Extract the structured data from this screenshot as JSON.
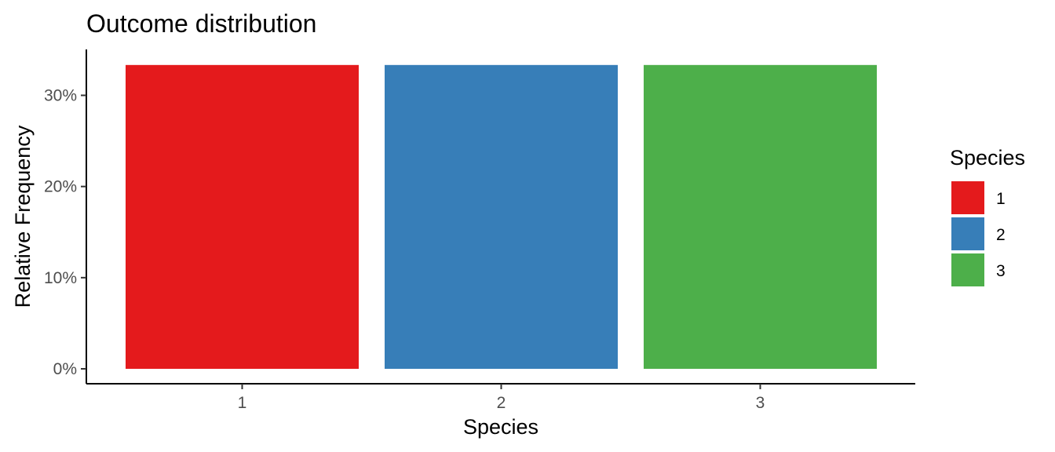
{
  "chart_data": {
    "type": "bar",
    "title": "Outcome distribution",
    "xlabel": "Species",
    "ylabel": "Relative Frequency",
    "categories": [
      "1",
      "2",
      "3"
    ],
    "values": [
      0.3333,
      0.3333,
      0.3333
    ],
    "colors": [
      "#E41A1C",
      "#377EB8",
      "#4DAF4A"
    ],
    "yticks": [
      0,
      0.1,
      0.2,
      0.3
    ],
    "ytick_labels": [
      "0%",
      "10%",
      "20%",
      "30%"
    ],
    "ylim": [
      0,
      0.35
    ],
    "grid": false,
    "legend": {
      "title": "Species",
      "position": "right",
      "items": [
        "1",
        "2",
        "3"
      ]
    }
  }
}
